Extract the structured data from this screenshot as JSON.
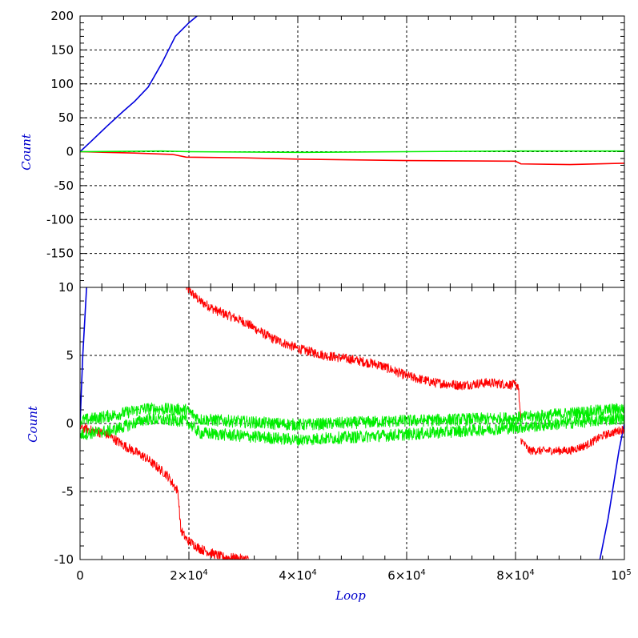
{
  "chart_data": {
    "type": "line",
    "grid": true,
    "xlabel": "Loop",
    "xlim": [
      0,
      100000
    ],
    "x_tick_labels": [
      {
        "v": 0,
        "base": "0",
        "exp": ""
      },
      {
        "v": 20000,
        "base": "2×10",
        "exp": "4"
      },
      {
        "v": 40000,
        "base": "4×10",
        "exp": "4"
      },
      {
        "v": 60000,
        "base": "6×10",
        "exp": "4"
      },
      {
        "v": 80000,
        "base": "8×10",
        "exp": "4"
      },
      {
        "v": 100000,
        "base": "10",
        "exp": "5"
      }
    ],
    "series_colors": {
      "blue": "#0000dd",
      "red": "#ff0000",
      "green": "#00ee00"
    },
    "panels": [
      {
        "id": "top",
        "ylabel": "Count",
        "ylim": [
          -200,
          200
        ],
        "y_tick_labels": [
          "200",
          "150",
          "100",
          "50",
          "0",
          "-50",
          "-100",
          "-150"
        ],
        "y_tick_values": [
          200,
          150,
          100,
          50,
          0,
          -50,
          -100,
          -150
        ],
        "series": [
          {
            "color": "blue",
            "x": [
              0,
              2000,
              5000,
              8000,
              10000,
              12500,
              15000,
              17500,
              20000,
              21500
            ],
            "y": [
              0,
              15,
              38,
              60,
              74,
              95,
              130,
              170,
              190,
              200
            ]
          },
          {
            "color": "red",
            "x": [
              0,
              10000,
              17000,
              19500,
              30000,
              40000,
              60000,
              80000,
              81000,
              90000,
              100000
            ],
            "y": [
              0,
              -2,
              -4,
              -8,
              -9,
              -11,
              -13,
              -14,
              -18,
              -19,
              -17
            ]
          },
          {
            "color": "green",
            "x": [
              0,
              15000,
              20000,
              40000,
              60000,
              80000,
              100000
            ],
            "y": [
              0,
              1,
              0,
              -1,
              0,
              1,
              1
            ]
          }
        ]
      },
      {
        "id": "bottom",
        "ylabel": "Count",
        "ylim": [
          -10,
          10
        ],
        "y_tick_labels": [
          "10",
          "5",
          "0",
          "-5",
          "-10"
        ],
        "y_tick_values": [
          10,
          5,
          0,
          -5,
          -10
        ],
        "series": [
          {
            "name_hint": "blue",
            "color": "blue",
            "x": [
              0,
              500,
              1200
            ],
            "y": [
              0,
              5,
              10
            ],
            "noise": 0
          },
          {
            "color": "blue",
            "x": [
              95500,
              97000,
              99000,
              100000
            ],
            "y": [
              -10,
              -7,
              -2,
              0
            ],
            "noise": 0
          },
          {
            "color": "red",
            "x": [
              19500,
              22000,
              25000,
              30000,
              35000,
              40000,
              45000,
              50000,
              55000,
              60000,
              65000,
              70000,
              75000,
              80500,
              81000
            ],
            "y": [
              10,
              9,
              8.3,
              7.5,
              6.3,
              5.5,
              5,
              4.7,
              4.3,
              3.5,
              3,
              2.8,
              3,
              2.8,
              0
            ],
            "noise": 0.35
          },
          {
            "color": "red",
            "x": [
              0,
              5000,
              8000,
              12000,
              16000,
              18000,
              18500,
              19500,
              22000,
              26000,
              31000
            ],
            "y": [
              -0.3,
              -0.8,
              -1.6,
              -2.5,
              -3.8,
              -5,
              -7.8,
              -8.5,
              -9.2,
              -9.8,
              -10
            ],
            "noise": 0.35
          },
          {
            "color": "red",
            "x": [
              81000,
              82500,
              86000,
              90000,
              93000,
              96000,
              100000
            ],
            "y": [
              -1.2,
              -2,
              -2,
              -2,
              -1.6,
              -0.9,
              -0.4
            ],
            "noise": 0.3
          },
          {
            "color": "green",
            "x": [
              0,
              6000,
              12000,
              19500,
              22000,
              40000,
              60000,
              80000,
              100000
            ],
            "y": [
              0.2,
              0.6,
              1.1,
              1,
              0.3,
              -0.1,
              0.2,
              0.4,
              1.1
            ],
            "noise": 0.45
          },
          {
            "color": "green",
            "x": [
              0,
              6000,
              12000,
              19500,
              22000,
              40000,
              60000,
              80000,
              100000
            ],
            "y": [
              -0.8,
              -0.5,
              0.3,
              0.2,
              -0.7,
              -1.2,
              -0.8,
              -0.3,
              0.4
            ],
            "noise": 0.45
          }
        ]
      }
    ]
  }
}
